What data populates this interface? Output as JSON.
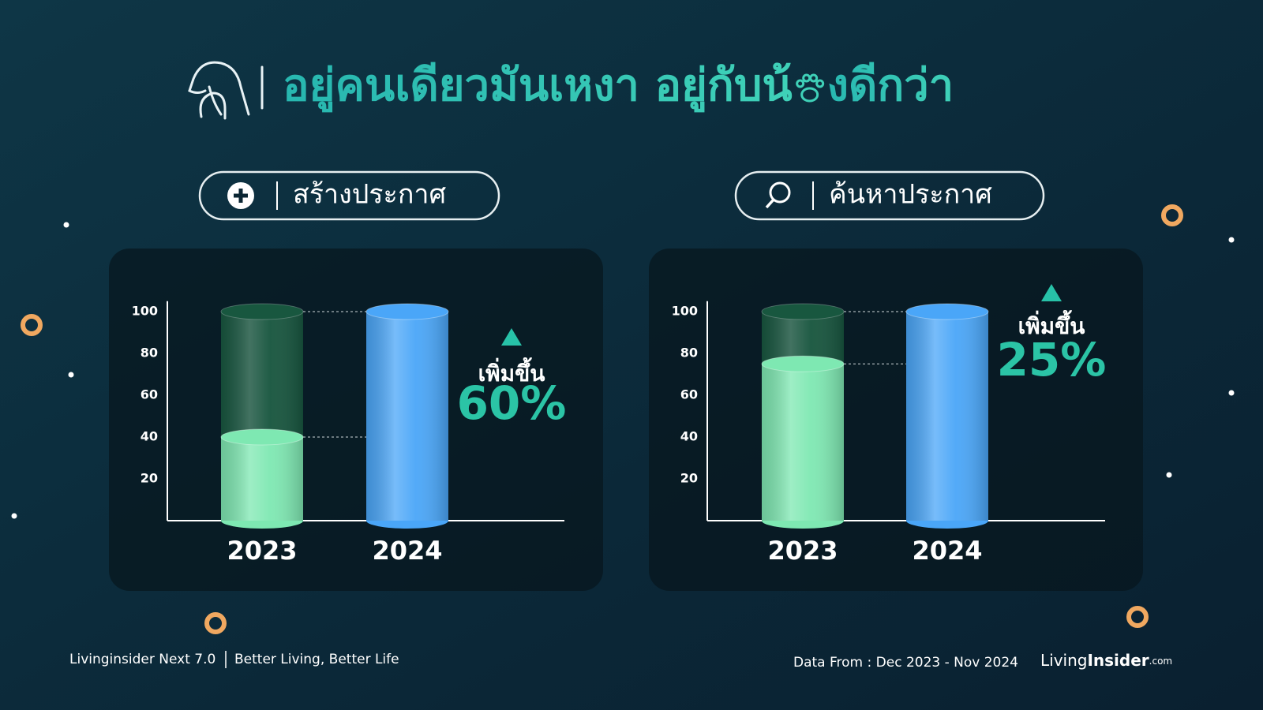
{
  "header": {
    "title_start": "อยู่คนเดียวมันเหงา อยู่กับน้",
    "title_end": "งดีกว่า"
  },
  "chart_data": [
    {
      "type": "cylinder",
      "button_label": "สร้างประกาศ",
      "categories": [
        "2023",
        "2024"
      ],
      "values": [
        40,
        100
      ],
      "colors": [
        "#7ee8b2",
        "#4aa6f8"
      ],
      "ylim": [
        0,
        105
      ],
      "yticks": [
        20,
        40,
        60,
        80,
        100
      ],
      "annotation": "เพิ่มขึ้น",
      "change_label": "60%"
    },
    {
      "type": "cylinder",
      "button_label": "ค้นหาประกาศ",
      "categories": [
        "2023",
        "2024"
      ],
      "values": [
        75,
        100
      ],
      "colors": [
        "#7ee8b2",
        "#4aa6f8"
      ],
      "ylim": [
        0,
        105
      ],
      "yticks": [
        20,
        40,
        60,
        80,
        100
      ],
      "annotation": "เพิ่มขึ้น",
      "change_label": "25%"
    }
  ],
  "footer": {
    "brand": "Livinginsider Next 7.0",
    "slogan": "Better Living, Better Life",
    "source": "Data From : Dec 2023 - Nov 2024",
    "logo_a": "Living",
    "logo_b": "Insider",
    "logo_c": ".com"
  }
}
